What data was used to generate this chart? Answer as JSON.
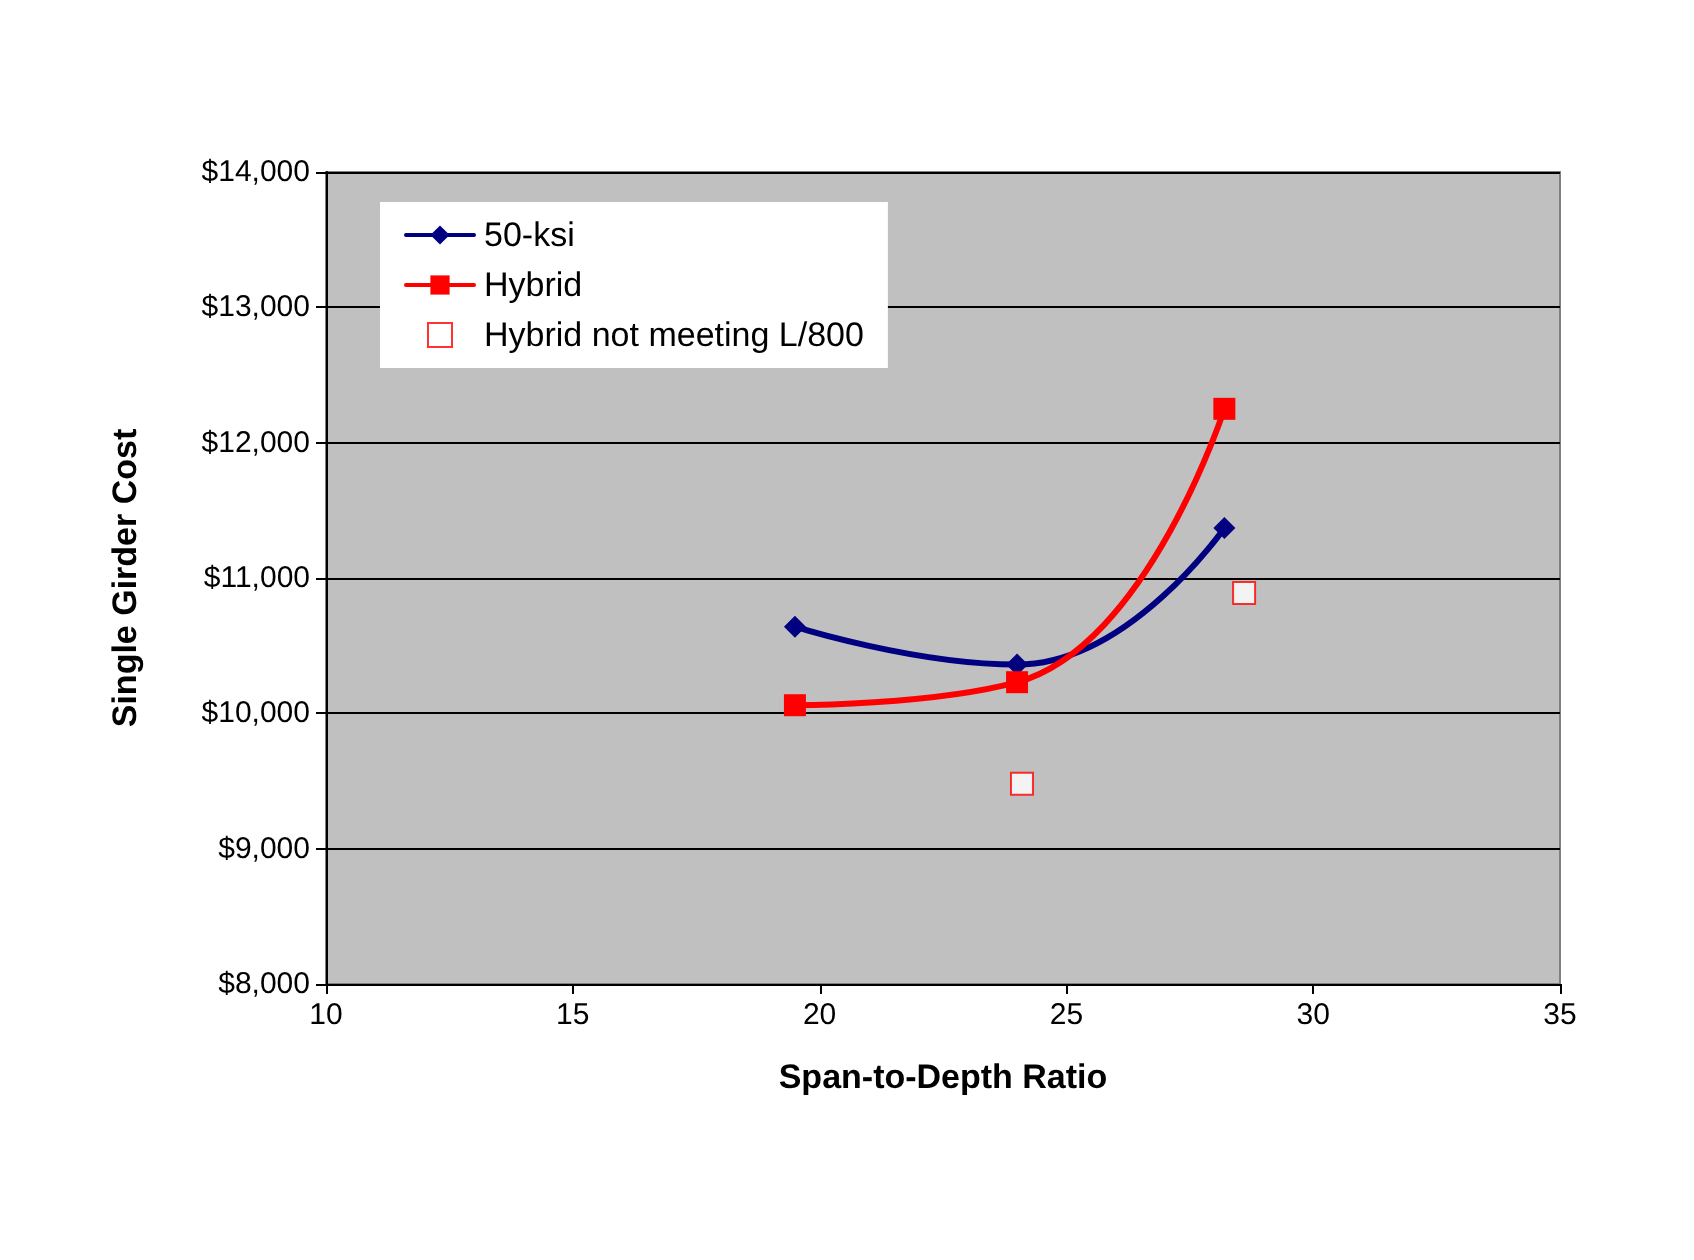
{
  "chart_data": {
    "type": "line",
    "xlabel": "Span-to-Depth Ratio",
    "ylabel": "Single Girder Cost",
    "xlim": [
      10,
      35
    ],
    "xticks": [
      10,
      15,
      20,
      25,
      30,
      35
    ],
    "ylim": [
      8000,
      14000
    ],
    "yticks": [
      {
        "value": 8000,
        "label": "$8,000"
      },
      {
        "value": 9000,
        "label": "$9,000"
      },
      {
        "value": 10000,
        "label": "$10,000"
      },
      {
        "value": 11000,
        "label": "$11,000"
      },
      {
        "value": 12000,
        "label": "$12,000"
      },
      {
        "value": 13000,
        "label": "$13,000"
      },
      {
        "value": 14000,
        "label": "$14,000"
      }
    ],
    "grid": "y",
    "legend": "top left",
    "series": [
      {
        "name": "50-ksi",
        "marker": "diamond",
        "color": "#000080",
        "x": [
          19.5,
          24,
          28.2
        ],
        "values": [
          10640,
          10360,
          11370
        ]
      },
      {
        "name": "Hybrid",
        "marker": "square",
        "color": "#ff0000",
        "x": [
          19.5,
          24,
          28.2
        ],
        "values": [
          10060,
          10230,
          12250
        ]
      },
      {
        "name": "Hybrid not meeting L/800",
        "type": "scatter",
        "marker": "square",
        "color": "#ff0000",
        "x": [
          24.1,
          28.6
        ],
        "values": [
          9480,
          10890
        ]
      }
    ]
  }
}
